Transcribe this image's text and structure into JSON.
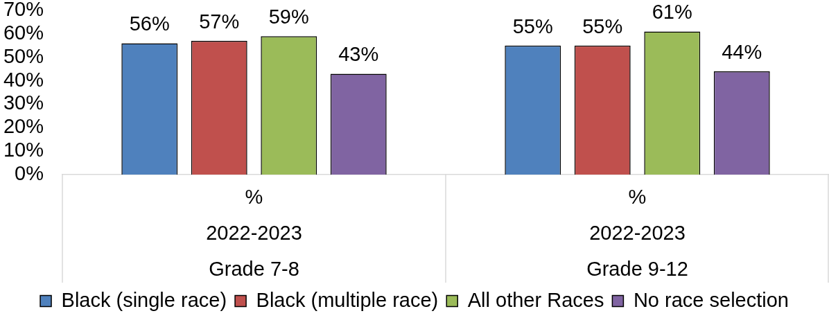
{
  "chart_data": {
    "type": "bar",
    "categories": [
      "%\n2022-2023\nGrade 7-8",
      "%\n2022-2023\nGrade 9-12"
    ],
    "series": [
      {
        "name": "Black (single race)",
        "color": "#4f81bd",
        "values": [
          56,
          55
        ],
        "value_labels": [
          "56%",
          "55%"
        ]
      },
      {
        "name": "Black (multiple race)",
        "color": "#c0504d",
        "values": [
          57,
          55
        ],
        "value_labels": [
          "57%",
          "55%"
        ]
      },
      {
        "name": "All other Races",
        "color": "#9bbb59",
        "values": [
          59,
          61
        ],
        "value_labels": [
          "59%",
          "61%"
        ]
      },
      {
        "name": "No race selection",
        "color": "#8064a2",
        "values": [
          43,
          44
        ],
        "value_labels": [
          "43%",
          "44%"
        ]
      }
    ],
    "ylim": [
      0,
      70
    ],
    "yticks": [
      {
        "value": 0,
        "label": "0%"
      },
      {
        "value": 10,
        "label": "10%"
      },
      {
        "value": 20,
        "label": "20%"
      },
      {
        "value": 30,
        "label": "30%"
      },
      {
        "value": 40,
        "label": "40%"
      },
      {
        "value": 50,
        "label": "50%"
      },
      {
        "value": 60,
        "label": "60%"
      },
      {
        "value": 70,
        "label": "70%"
      }
    ],
    "legend": "bottom"
  }
}
